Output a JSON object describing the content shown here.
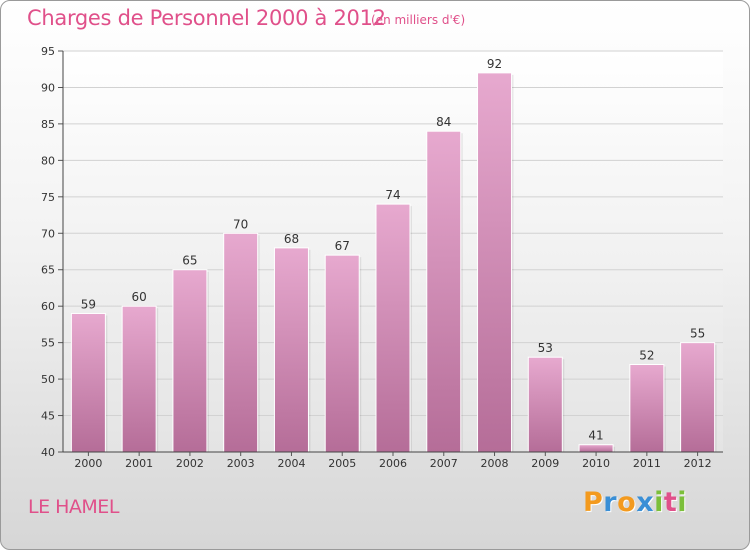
{
  "header": {
    "title": "Charges de Personnel 2000 à 2012",
    "subtitle": "(en milliers d'€)"
  },
  "footer": {
    "commune": "LE HAMEL",
    "logo_letters": [
      "P",
      "r",
      "o",
      "x",
      "i",
      "t",
      "i"
    ],
    "logo_colors": [
      "#f39a1e",
      "#3a8fd6",
      "#f39a1e",
      "#3a8fd6",
      "#7bbf3a",
      "#e0508a",
      "#7bbf3a"
    ]
  },
  "colors": {
    "bar_top": "#e7a9cf",
    "bar_bottom": "#b56d98",
    "text_accent": "#e0508a"
  },
  "chart_data": {
    "type": "bar",
    "title": "Charges de Personnel 2000 à 2012",
    "subtitle": "(en milliers d'€)",
    "xlabel": "",
    "ylabel": "",
    "categories": [
      "2000",
      "2001",
      "2002",
      "2003",
      "2004",
      "2005",
      "2006",
      "2007",
      "2008",
      "2009",
      "2010",
      "2011",
      "2012"
    ],
    "values": [
      59,
      60,
      65,
      70,
      68,
      67,
      74,
      84,
      92,
      53,
      41,
      52,
      55
    ],
    "ylim": [
      40,
      95
    ],
    "yticks": [
      40,
      45,
      50,
      55,
      60,
      65,
      70,
      75,
      80,
      85,
      90,
      95
    ],
    "grid": true
  }
}
